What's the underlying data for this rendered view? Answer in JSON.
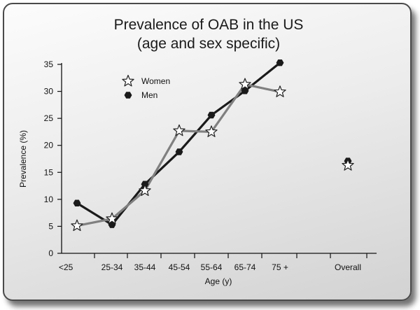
{
  "chart_data": {
    "type": "line",
    "title": [
      "Prevalence of OAB in the US",
      "(age and sex specific)"
    ],
    "xlabel": "Age (y)",
    "ylabel": "Prevalence (%)",
    "categories": [
      "<25",
      "25-34",
      "35-44",
      "45-54",
      "55-64",
      "65-74",
      "75 +",
      "Overall"
    ],
    "ylim": [
      0,
      35
    ],
    "yticks": [
      0,
      5,
      10,
      15,
      20,
      25,
      30,
      35
    ],
    "grid": false,
    "legend": "top-left",
    "series": [
      {
        "name": "Women",
        "marker": "star",
        "color": "#808080",
        "values": [
          5.1,
          6.4,
          11.6,
          22.7,
          22.5,
          31.3,
          29.9,
          16.3
        ]
      },
      {
        "name": "Men",
        "marker": "hexagon",
        "color": "#1a1a1a",
        "values": [
          9.3,
          5.3,
          12.8,
          18.8,
          25.6,
          30.1,
          35.3,
          17.1
        ]
      }
    ]
  }
}
